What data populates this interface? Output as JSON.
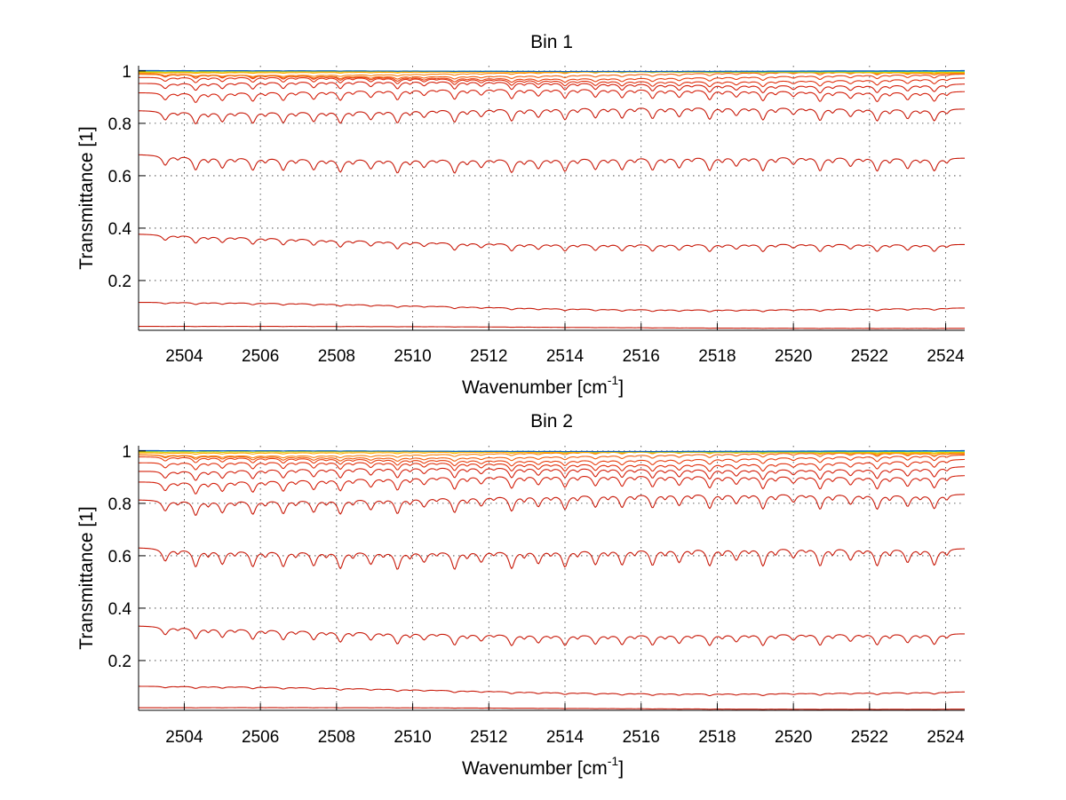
{
  "chart_data": [
    {
      "type": "line",
      "title": "Bin 1",
      "xlabel": "Wavenumber [cm",
      "xlabel_superscript": "-1",
      "xlabel_suffix": "]",
      "ylabel": "Transmittance [1]",
      "xlim": [
        2502.8,
        2524.5
      ],
      "ylim": [
        0.01,
        1.02
      ],
      "xticks": [
        2504,
        2506,
        2508,
        2510,
        2512,
        2514,
        2516,
        2518,
        2520,
        2522,
        2524
      ],
      "yticks": [
        0.2,
        0.4,
        0.6,
        0.8,
        1
      ],
      "ytick_labels": [
        "0.2",
        "0.4",
        "0.6",
        "0.8",
        "1"
      ],
      "grid": true,
      "legend": "none",
      "line_centers_cm-1": [
        2503.5,
        2504.3,
        2505.0,
        2505.8,
        2506.6,
        2507.4,
        2508.1,
        2508.9,
        2509.6,
        2510.3,
        2511.1,
        2511.8,
        2512.6,
        2513.3,
        2514.0,
        2514.8,
        2515.5,
        2516.3,
        2517.0,
        2517.8,
        2518.5,
        2519.2,
        2520.0,
        2520.7,
        2521.5,
        2522.2,
        2523.0,
        2523.7
      ],
      "series": [
        {
          "color": "#c81a0a",
          "start": 0.025,
          "end": 0.018,
          "depth": 0.001
        },
        {
          "color": "#c81a0a",
          "start": 0.11,
          "end": 0.09,
          "depth": 0.008
        },
        {
          "color": "#c81a0a",
          "start": 0.37,
          "end": 0.33,
          "depth": 0.03
        },
        {
          "color": "#c81a0a",
          "start": 0.68,
          "end": 0.665,
          "depth": 0.055
        },
        {
          "color": "#c81a0a",
          "start": 0.855,
          "end": 0.86,
          "depth": 0.05
        },
        {
          "color": "#d4200c",
          "start": 0.925,
          "end": 0.93,
          "depth": 0.04
        },
        {
          "color": "#d4200c",
          "start": 0.955,
          "end": 0.955,
          "depth": 0.03
        },
        {
          "color": "#e0300e",
          "start": 0.97,
          "end": 0.97,
          "depth": 0.022
        },
        {
          "color": "#e84010",
          "start": 0.98,
          "end": 0.98,
          "depth": 0.015
        },
        {
          "color": "#f06010",
          "start": 0.987,
          "end": 0.988,
          "depth": 0.01
        },
        {
          "color": "#f88010",
          "start": 0.992,
          "end": 0.992,
          "depth": 0.006
        },
        {
          "color": "#ffa800",
          "start": 0.995,
          "end": 0.995,
          "depth": 0.003
        },
        {
          "color": "#d8d000",
          "start": 0.997,
          "end": 0.997,
          "depth": 0.002
        },
        {
          "color": "#20b0b0",
          "start": 0.999,
          "end": 0.999,
          "depth": 0.001
        },
        {
          "color": "#1060c0",
          "start": 1.0,
          "end": 1.0,
          "depth": 0.001
        }
      ]
    },
    {
      "type": "line",
      "title": "Bin 2",
      "xlabel": "Wavenumber [cm",
      "xlabel_superscript": "-1",
      "xlabel_suffix": "]",
      "ylabel": "Transmittance [1]",
      "xlim": [
        2502.8,
        2524.5
      ],
      "ylim": [
        0.01,
        1.02
      ],
      "xticks": [
        2504,
        2506,
        2508,
        2510,
        2512,
        2514,
        2516,
        2518,
        2520,
        2522,
        2524
      ],
      "yticks": [
        0.2,
        0.4,
        0.6,
        0.8,
        1
      ],
      "ytick_labels": [
        "0.2",
        "0.4",
        "0.6",
        "0.8",
        "1"
      ],
      "grid": true,
      "legend": "none",
      "line_centers_cm-1": [
        2503.5,
        2504.3,
        2505.0,
        2505.8,
        2506.6,
        2507.4,
        2508.1,
        2508.9,
        2509.6,
        2510.3,
        2511.1,
        2511.8,
        2512.6,
        2513.3,
        2514.0,
        2514.8,
        2515.5,
        2516.3,
        2517.0,
        2517.8,
        2518.5,
        2519.2,
        2520.0,
        2520.7,
        2521.5,
        2522.2,
        2523.0,
        2523.7
      ],
      "series": [
        {
          "color": "#c81a0a",
          "start": 0.02,
          "end": 0.015,
          "depth": 0.001
        },
        {
          "color": "#c81a0a",
          "start": 0.095,
          "end": 0.075,
          "depth": 0.008
        },
        {
          "color": "#c81a0a",
          "start": 0.325,
          "end": 0.295,
          "depth": 0.045
        },
        {
          "color": "#c81a0a",
          "start": 0.63,
          "end": 0.625,
          "depth": 0.07
        },
        {
          "color": "#c81a0a",
          "start": 0.82,
          "end": 0.84,
          "depth": 0.06
        },
        {
          "color": "#d4200c",
          "start": 0.89,
          "end": 0.915,
          "depth": 0.05
        },
        {
          "color": "#d4200c",
          "start": 0.925,
          "end": 0.945,
          "depth": 0.04
        },
        {
          "color": "#e0300e",
          "start": 0.95,
          "end": 0.965,
          "depth": 0.03
        },
        {
          "color": "#e84010",
          "start": 0.97,
          "end": 0.977,
          "depth": 0.022
        },
        {
          "color": "#f06010",
          "start": 0.982,
          "end": 0.986,
          "depth": 0.014
        },
        {
          "color": "#f88010",
          "start": 0.99,
          "end": 0.991,
          "depth": 0.009
        },
        {
          "color": "#ffa800",
          "start": 0.994,
          "end": 0.995,
          "depth": 0.005
        },
        {
          "color": "#d8d000",
          "start": 0.997,
          "end": 0.997,
          "depth": 0.003
        },
        {
          "color": "#20b0b0",
          "start": 0.999,
          "end": 0.999,
          "depth": 0.001
        },
        {
          "color": "#1060c0",
          "start": 1.0,
          "end": 1.0,
          "depth": 0.001
        }
      ]
    }
  ]
}
